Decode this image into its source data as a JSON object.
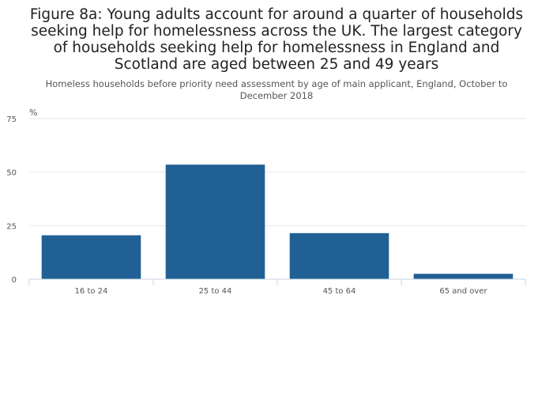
{
  "chart_data": {
    "type": "bar",
    "title": "Figure 8a: Young adults account for around a quarter of households seeking help for homelessness across the UK. The largest category of households seeking help for homelessness in England and Scotland are aged between 25 and 49 years",
    "subtitle": "Homeless households before priority need assessment by age of main applicant, England, October to December 2018",
    "ylabel": "%",
    "xlabel": "",
    "categories": [
      "16 to 24",
      "25 to 44",
      "45 to 64",
      "65 and over"
    ],
    "values": [
      20.5,
      53.5,
      21.5,
      2.5
    ],
    "ylim": [
      0,
      75
    ],
    "yticks": [
      "0",
      "25",
      "50",
      "75"
    ],
    "grid": true,
    "colors": {
      "bar": "#206095",
      "grid": "#e6e6e6",
      "axis_text": "#555555"
    }
  }
}
